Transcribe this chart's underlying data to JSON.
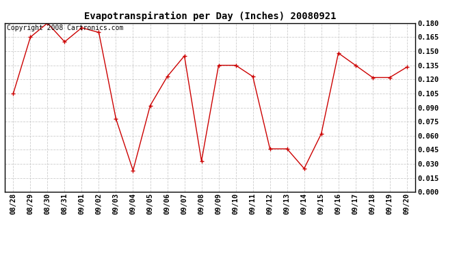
{
  "title": "Evapotranspiration per Day (Inches) 20080921",
  "copyright_text": "Copyright 2008 Cartronics.com",
  "x_labels": [
    "08/28",
    "08/29",
    "08/30",
    "08/31",
    "09/01",
    "09/02",
    "09/03",
    "09/04",
    "09/05",
    "09/06",
    "09/07",
    "09/08",
    "09/09",
    "09/10",
    "09/11",
    "09/12",
    "09/13",
    "09/14",
    "09/15",
    "09/16",
    "09/17",
    "09/18",
    "09/19",
    "09/20"
  ],
  "y_values": [
    0.105,
    0.165,
    0.18,
    0.16,
    0.175,
    0.17,
    0.078,
    0.023,
    0.092,
    0.123,
    0.145,
    0.033,
    0.135,
    0.135,
    0.123,
    0.046,
    0.046,
    0.025,
    0.062,
    0.148,
    0.135,
    0.122,
    0.122,
    0.133
  ],
  "line_color": "#CC0000",
  "marker": "+",
  "marker_size": 5,
  "marker_color": "#CC0000",
  "background_color": "#FFFFFF",
  "plot_bg_color": "#FFFFFF",
  "grid_color": "#CCCCCC",
  "y_min": 0.0,
  "y_max": 0.18,
  "y_tick_interval": 0.015,
  "title_fontsize": 10,
  "copyright_fontsize": 7,
  "tick_fontsize": 7.5
}
